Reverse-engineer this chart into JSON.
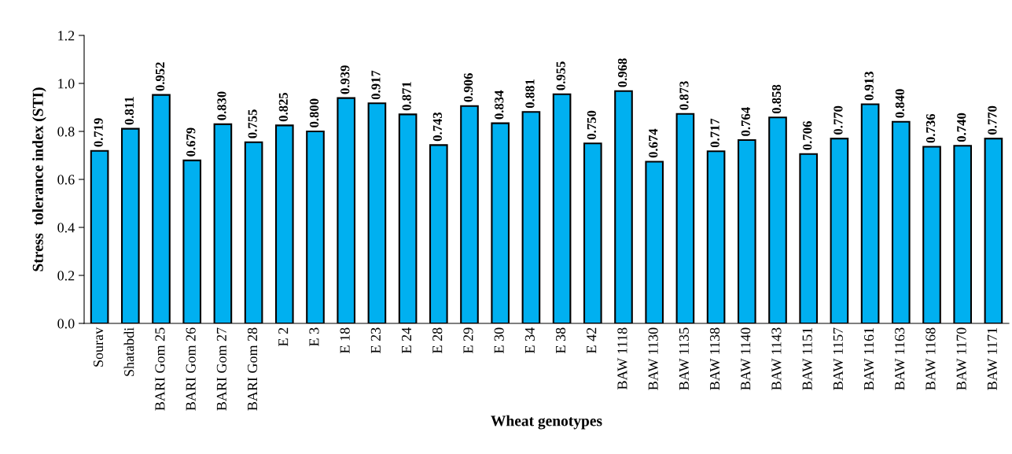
{
  "chart_data": {
    "type": "bar",
    "xlabel": "Wheat genotypes",
    "ylabel": "Stress  tolerance index (STI)",
    "categories": [
      "Sourav",
      "Shatabdi",
      "BARI Gom 25",
      "BARI Gom 26",
      "BARI Gom 27",
      "BARI Gom 28",
      "E 2",
      "E 3",
      "E 18",
      "E 23",
      "E 24",
      "E 28",
      "E 29",
      "E 30",
      "E 34",
      "E 38",
      "E 42",
      "BAW 1118",
      "BAW 1130",
      "BAW 1135",
      "BAW 1138",
      "BAW 1140",
      "BAW 1143",
      "BAW 1151",
      "BAW 1157",
      "BAW 1161",
      "BAW 1163",
      "BAW 1168",
      "BAW 1170",
      "BAW 1171"
    ],
    "values": [
      0.719,
      0.811,
      0.952,
      0.679,
      0.83,
      0.755,
      0.825,
      0.8,
      0.939,
      0.917,
      0.871,
      0.743,
      0.906,
      0.834,
      0.881,
      0.955,
      0.75,
      0.968,
      0.674,
      0.873,
      0.717,
      0.764,
      0.858,
      0.706,
      0.77,
      0.913,
      0.84,
      0.736,
      0.74,
      0.77
    ],
    "value_labels": [
      "0.719",
      "0.811",
      "0.952",
      "0.679",
      "0.830",
      "0.755",
      "0.825",
      "0.800",
      "0.939",
      "0.917",
      "0.871",
      "0.743",
      "0.906",
      "0.834",
      "0.881",
      "0.955",
      "0.750",
      "0.968",
      "0.674",
      "0.873",
      "0.717",
      "0.764",
      "0.858",
      "0.706",
      "0.770",
      "0.913",
      "0.840",
      "0.736",
      "0.740",
      "0.770"
    ],
    "color": "#00b0f0",
    "ylim": [
      0,
      1.2
    ],
    "yticks": [
      {
        "value": 0,
        "label": "0.0"
      },
      {
        "value": 0.2,
        "label": "0.2"
      },
      {
        "value": 0.4,
        "label": "0.4"
      },
      {
        "value": 0.6,
        "label": "0.6"
      },
      {
        "value": 0.8,
        "label": "0.8"
      },
      {
        "value": 1.0,
        "label": "1.0"
      },
      {
        "value": 1.2,
        "label": "1.2"
      }
    ],
    "grid": false,
    "legend": false
  }
}
